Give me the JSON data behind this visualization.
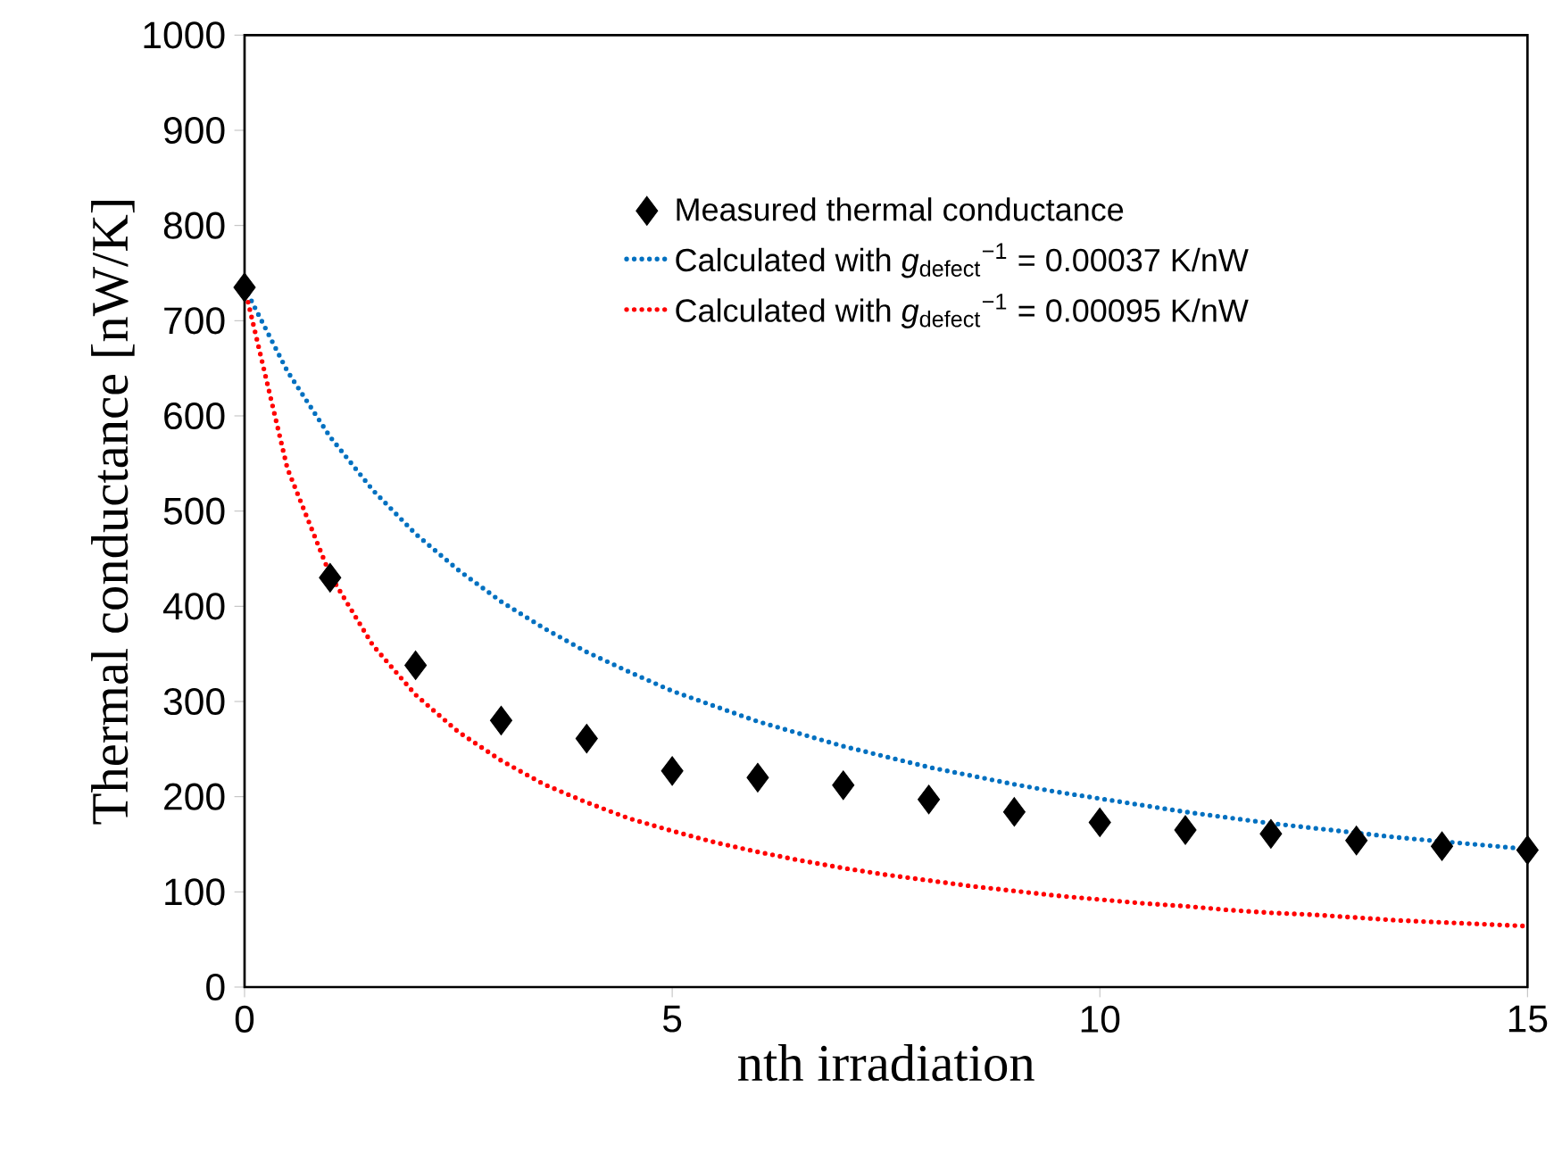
{
  "chart_data": {
    "type": "line",
    "xlabel": "nth irradiation",
    "ylabel": "Thermal conductance [nW/K]",
    "xlim": [
      0,
      15
    ],
    "ylim": [
      0,
      1000
    ],
    "xticks": [
      0,
      5,
      10,
      15
    ],
    "yticks": [
      0,
      100,
      200,
      300,
      400,
      500,
      600,
      700,
      800,
      900,
      1000
    ],
    "grid": false,
    "legend": "top right",
    "series": [
      {
        "name": "Measured thermal conductance",
        "type": "scatter",
        "marker": "diamond",
        "color": "#000000",
        "x": [
          0,
          1,
          2,
          3,
          4,
          5,
          6,
          7,
          8,
          9,
          10,
          11,
          12,
          13,
          14,
          15
        ],
        "values": [
          735,
          430,
          338,
          280,
          261,
          227,
          220,
          212,
          197,
          184,
          173,
          165,
          161,
          154,
          148,
          144
        ]
      },
      {
        "name": "Calculated with *g*$_{defect}$$^{−1}$ = 0.00037 K/nW",
        "type": "line",
        "line_style": "dotted",
        "color": "#0070c0",
        "x": [
          0,
          0.5,
          1,
          1.5,
          2,
          2.5,
          3,
          3.5,
          4,
          4.5,
          5,
          5.5,
          6,
          6.5,
          7,
          7.5,
          8,
          8.5,
          9,
          9.5,
          10,
          10.5,
          11,
          11.5,
          12,
          12.5,
          13,
          13.5,
          14,
          14.5,
          15
        ],
        "values": [
          735,
          647,
          578,
          522,
          476,
          438,
          405,
          377,
          352,
          331,
          311,
          295,
          279,
          266,
          253,
          242,
          231,
          222,
          213,
          205,
          198,
          191,
          184,
          178,
          172,
          167,
          162,
          157,
          153,
          149,
          145
        ]
      },
      {
        "name": "Calculated with *g*$_{defect}$$^{−1}$ = 0.00095 K/nW",
        "type": "line",
        "line_style": "dotted",
        "color": "#ff0000",
        "x": [
          0,
          0.5,
          1,
          1.5,
          2,
          2.5,
          3,
          3.5,
          4,
          4.5,
          5,
          5.5,
          6,
          6.5,
          7,
          7.5,
          8,
          8.5,
          9,
          9.5,
          10,
          10.5,
          11,
          11.5,
          12,
          12.5,
          13,
          13.5,
          14,
          14.5,
          15
        ],
        "values": [
          735,
          545,
          433,
          359,
          307,
          268,
          238,
          213,
          194,
          177,
          164,
          152,
          142,
          133,
          125,
          118,
          112,
          106,
          101,
          96,
          92,
          88,
          85,
          81,
          78,
          76,
          73,
          70,
          68,
          66,
          64
        ]
      }
    ]
  }
}
